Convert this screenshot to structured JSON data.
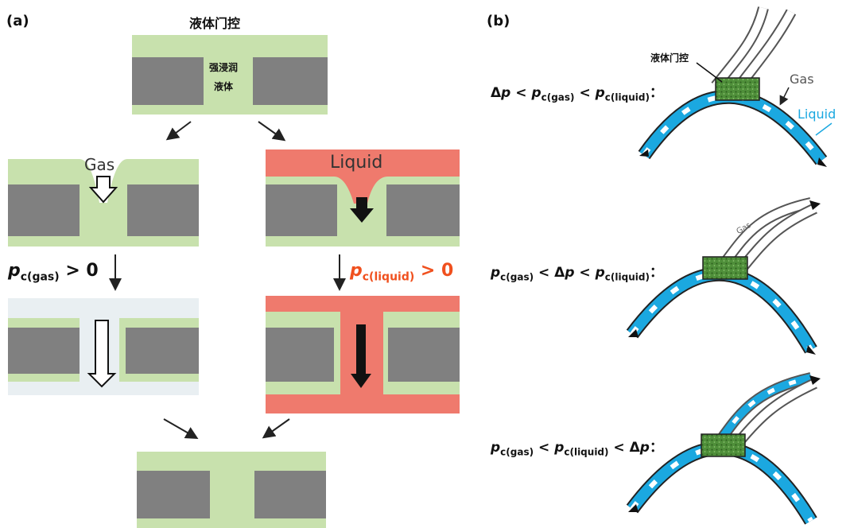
{
  "panel_a": {
    "label": "(a)",
    "title": "液体门控",
    "top_inner_text": [
      "强浸润",
      "液体"
    ],
    "gas_label": "Gas",
    "liquid_label": "Liquid",
    "gas_pressure": {
      "sym": "p",
      "sub": "c(gas)",
      "rel": " > 0"
    },
    "liquid_pressure": {
      "sym": "p",
      "sub": "c(liquid)",
      "rel": " > 0"
    }
  },
  "panel_b": {
    "label": "(b)",
    "gate_label": "液体门控",
    "gas_label": "Gas",
    "liquid_label": "Liquid",
    "gas_tube_text": "Gas",
    "conditions": [
      {
        "a": "Δ",
        "a_it": "p",
        "b": " < ",
        "c_it": "p",
        "c_sub": "c(gas)",
        "d": " < ",
        "e_it": "p",
        "e_sub": "c(liquid)",
        "f": "："
      },
      {
        "a_it": "p",
        "a_sub": "c(gas)",
        "b": " < Δ",
        "c_it": "p",
        "d": " < ",
        "e_it": "p",
        "e_sub": "c(liquid)",
        "f": "："
      },
      {
        "a_it": "p",
        "a_sub": "c(gas)",
        "b": " < ",
        "c_it": "p",
        "c_sub": "c(liquid)",
        "d": " < Δ",
        "e_it": "p",
        "f": "："
      }
    ]
  },
  "colors": {
    "green": "#c8e1ad",
    "gray": "#808080",
    "red": "#ef7a6d",
    "blue": "#1ba8e0",
    "gate": "#4f8f3a",
    "orange_text": "#f0501e"
  }
}
